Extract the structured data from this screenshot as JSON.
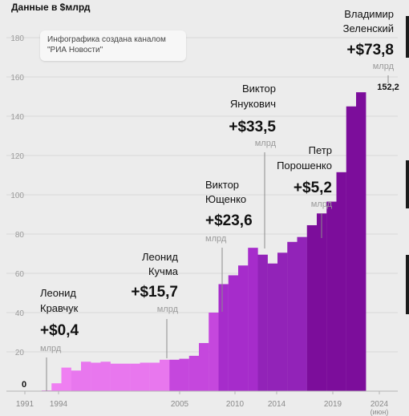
{
  "subtitle": "Данные в $млрд",
  "credit": {
    "line1": "Инфографика создана каналом",
    "line2": "\"РИА Новости\""
  },
  "chart_data": {
    "type": "bar",
    "ylim": [
      0,
      160
    ],
    "y_ticks": [
      0,
      20,
      40,
      60,
      80,
      100,
      120,
      140,
      160,
      180
    ],
    "x_tick_labels": [
      "1991",
      "1994",
      "2005",
      "2010",
      "2014",
      "2019",
      "2024",
      "(июн)"
    ],
    "grid": true,
    "colors": {
      "kravchuk": "#ef7ff2",
      "kuchma": "#e877ee",
      "yushchenko": "#c547dd",
      "yanukovych": "#a62ccb",
      "poroshenko": "#9223b8",
      "zelensky": "#7c0d9b"
    },
    "series": [
      {
        "key": "kravchuk",
        "years": [
          1992,
          1993,
          1994
        ],
        "values": [
          0.4,
          4,
          12
        ]
      },
      {
        "key": "kuchma",
        "years": [
          1995,
          1996,
          1997,
          1998,
          1999,
          2000,
          2001,
          2002,
          2003,
          2004
        ],
        "values": [
          10.5,
          15,
          14.5,
          15,
          14,
          14,
          14,
          14.5,
          14.5,
          16
        ]
      },
      {
        "key": "yushchenko",
        "years": [
          2005,
          2006,
          2007,
          2008,
          2009
        ],
        "values": [
          16,
          16.5,
          18,
          24.5,
          40
        ]
      },
      {
        "key": "yanukovych",
        "years": [
          2010,
          2011,
          2012,
          2013
        ],
        "values": [
          54.5,
          59,
          64,
          73
        ]
      },
      {
        "key": "poroshenko",
        "years": [
          2014,
          2015,
          2016,
          2017,
          2018
        ],
        "values": [
          69.5,
          65,
          70.5,
          76,
          78.5
        ]
      },
      {
        "key": "zelensky",
        "years": [
          2019,
          2020,
          2021,
          2022,
          2023,
          2024
        ],
        "values": [
          84.5,
          90.5,
          96.5,
          111.5,
          145,
          152.2
        ]
      }
    ],
    "value_labels": [
      {
        "text": "0",
        "year": 1992
      },
      {
        "text": "152,2",
        "year": 2024
      }
    ],
    "annotations": [
      {
        "key": "kravchuk",
        "name": [
          "Леонид",
          "Кравчук"
        ],
        "amount": "+$0,4",
        "unit": "млрд"
      },
      {
        "key": "kuchma",
        "name": [
          "Леонид",
          "Кучма"
        ],
        "amount": "+$15,7",
        "unit": "млрд"
      },
      {
        "key": "yushchenko",
        "name": [
          "Виктор",
          "Ющенко"
        ],
        "amount": "+$23,6",
        "unit": "млрд"
      },
      {
        "key": "yanukovych",
        "name": [
          "Виктор",
          "Янукович"
        ],
        "amount": "+$33,5",
        "unit": "млрд"
      },
      {
        "key": "poroshenko",
        "name": [
          "Петр",
          "Порошенко"
        ],
        "amount": "+$5,2",
        "unit": "млрд"
      },
      {
        "key": "zelensky",
        "name": [
          "Владимир",
          "Зеленский"
        ],
        "amount": "+$73,8",
        "unit": "млрд"
      }
    ]
  }
}
